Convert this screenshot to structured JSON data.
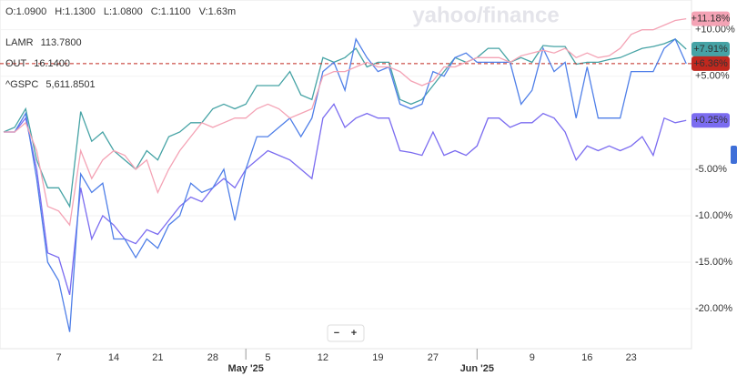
{
  "chart_data": {
    "type": "line",
    "watermark": "yahoo/finance",
    "ohlcv": [
      "O:1.0900",
      "H:1.1300",
      "L:1.0800",
      "C:1.1100",
      "V:1.63m"
    ],
    "zoom_buttons": [
      "−",
      "+"
    ],
    "categories": [
      null,
      null,
      null,
      null,
      null,
      "7",
      null,
      null,
      null,
      null,
      "14",
      null,
      null,
      null,
      "21",
      null,
      null,
      null,
      null,
      "28",
      null,
      null,
      "May '25",
      null,
      "5",
      null,
      null,
      null,
      null,
      "12",
      null,
      null,
      null,
      null,
      "19",
      null,
      null,
      null,
      null,
      "27",
      null,
      null,
      null,
      "Jun '25",
      null,
      null,
      null,
      null,
      "9",
      null,
      null,
      null,
      null,
      "16",
      null,
      null,
      null,
      "23",
      null,
      null,
      null,
      null,
      null
    ],
    "ylim": [
      -24.3,
      13.2
    ],
    "yticks": [
      {
        "value": 10,
        "label": "+10.00%"
      },
      {
        "value": 5,
        "label": "+5.00%"
      },
      {
        "value": -5,
        "label": "-5.00%"
      },
      {
        "value": -10,
        "label": "-10.00%"
      },
      {
        "value": -15,
        "label": "-15.00%"
      },
      {
        "value": -20,
        "label": "-20.00%"
      }
    ],
    "grid": true,
    "series": [
      {
        "color": "#7b6cf0",
        "badge_label": "+0.25%",
        "values": [
          -1,
          -1,
          0.5,
          -5,
          -14,
          -14.5,
          -18.5,
          -7,
          -12.5,
          -10,
          -11,
          -12.5,
          -13,
          -11.5,
          -12,
          -10.5,
          -9,
          -8,
          -8.5,
          -7,
          -6,
          -7,
          -5,
          -4,
          -3,
          -3.5,
          -4,
          -5,
          -6,
          0.5,
          2,
          -0.5,
          0.5,
          1,
          0.5,
          0.5,
          -3,
          -3.2,
          -3.5,
          -1,
          -3.5,
          -3,
          -3.5,
          -2.5,
          0.5,
          0.5,
          -0.5,
          0,
          0,
          1,
          0.5,
          -1,
          -4,
          -2.5,
          -3,
          -2.5,
          -3,
          -2.5,
          -1.5,
          -3.5,
          0.5,
          0,
          0.25
        ]
      },
      {
        "name": "LAMR",
        "last_price": "113.7800",
        "color": "#46a3a5",
        "badge_label": "+7.91%",
        "values": [
          -1,
          -0.5,
          1.5,
          -4,
          -7,
          -7,
          -9,
          1.2,
          -2,
          -1,
          -3,
          -4,
          -5,
          -3,
          -4,
          -1.5,
          -1,
          0,
          0,
          1.5,
          2,
          1.5,
          2,
          4,
          4,
          4,
          5.5,
          3,
          2.5,
          7,
          6.5,
          7,
          8,
          6,
          6.5,
          6.5,
          2.5,
          2,
          2.5,
          4,
          5.5,
          7,
          6.5,
          7,
          8,
          8,
          6.5,
          7,
          6.5,
          8.3,
          8.2,
          8.2,
          6.3,
          6.5,
          6.5,
          6.8,
          7,
          7.5,
          8,
          8.2,
          8.5,
          9,
          7.91
        ]
      },
      {
        "name": "OUT",
        "last_price": "16.1400",
        "color": "#4f7fe8",
        "badge_label": "+6.36%",
        "badge_color": "#c0281e",
        "price_line": true,
        "values": [
          -1,
          -1,
          1,
          -6,
          -15,
          -17,
          -22.5,
          -5.5,
          -7.5,
          -6.5,
          -12.5,
          -12.5,
          -14.5,
          -12.5,
          -13.5,
          -11,
          -10,
          -6.5,
          -7.5,
          -7,
          -5,
          -10.5,
          -5,
          -1.5,
          -1.5,
          -0.5,
          0.5,
          -1.5,
          0.5,
          5.5,
          6.5,
          3.5,
          9,
          7,
          5.5,
          6,
          2,
          1.5,
          2,
          5.5,
          5,
          7,
          7.5,
          6.5,
          6.5,
          6.5,
          6.5,
          2,
          3.5,
          8,
          5.5,
          6.5,
          0.5,
          6,
          0.5,
          0.5,
          0.5,
          5.5,
          5.5,
          5.5,
          8,
          9,
          6.36
        ]
      },
      {
        "name": "^GSPC",
        "last_price": "5,611.8501",
        "color": "#f4a3b5",
        "badge_label": "+11.18%",
        "values": [
          -1,
          -1,
          0,
          -3,
          -9,
          -9.5,
          -11,
          -3,
          -6,
          -4,
          -3,
          -3.5,
          -5,
          -4,
          -7.5,
          -5,
          -3,
          -1.5,
          0,
          -0.5,
          0,
          0.5,
          0.5,
          1.5,
          2,
          1.5,
          0.5,
          1,
          1.5,
          5,
          5.5,
          5.5,
          6,
          6.5,
          6,
          6,
          5.5,
          4.5,
          4,
          4.5,
          6,
          6,
          6.5,
          7,
          7,
          7,
          6.5,
          7.2,
          7.5,
          7.8,
          7.5,
          8,
          7,
          7.5,
          7,
          7.2,
          8,
          9.5,
          10,
          10,
          10.5,
          11,
          11.18
        ]
      }
    ]
  }
}
